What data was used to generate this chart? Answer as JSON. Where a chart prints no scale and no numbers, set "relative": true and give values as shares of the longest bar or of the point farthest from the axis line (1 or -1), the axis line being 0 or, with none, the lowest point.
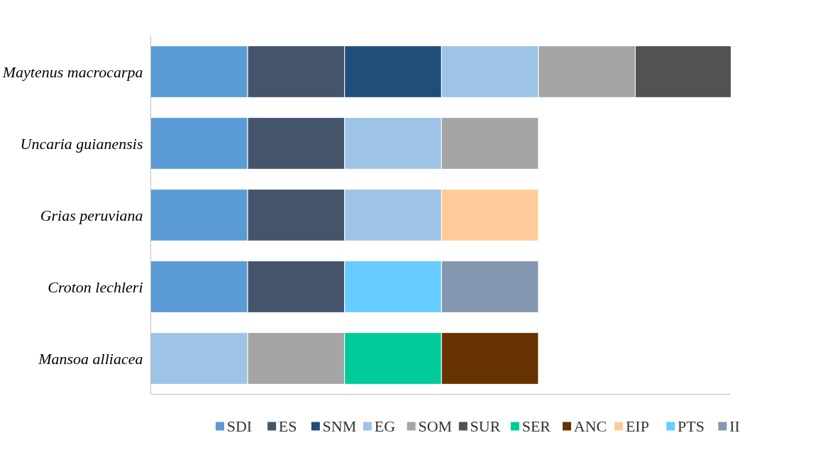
{
  "chart_data": {
    "type": "bar",
    "orientation": "horizontal",
    "stacked": true,
    "relative": true,
    "legend": "bottom",
    "categories": [
      "Maytenus macrocarpa",
      "Uncaria guianensis",
      "Grias peruviana",
      "Croton lechleri",
      "Mansoa alliacea"
    ],
    "series": [
      {
        "name": "SDI",
        "color": "#5b9bd5",
        "values": [
          0.167,
          0.167,
          0.167,
          0.167,
          null
        ]
      },
      {
        "name": "ES",
        "color": "#44546a",
        "values": [
          0.167,
          0.167,
          0.167,
          0.167,
          null
        ]
      },
      {
        "name": "SNM",
        "color": "#1f4e79",
        "values": [
          0.167,
          null,
          null,
          null,
          null
        ]
      },
      {
        "name": "EG",
        "color": "#9dc3e6",
        "values": [
          0.167,
          0.167,
          0.167,
          null,
          0.167
        ]
      },
      {
        "name": "SOM",
        "color": "#a5a5a5",
        "values": [
          0.167,
          0.167,
          null,
          null,
          0.167
        ]
      },
      {
        "name": "SUR",
        "color": "#525252",
        "values": [
          0.165,
          null,
          null,
          null,
          null
        ]
      },
      {
        "name": "SER",
        "color": "#00cc99",
        "values": [
          null,
          null,
          null,
          null,
          0.167
        ]
      },
      {
        "name": "ANC",
        "color": "#663300",
        "values": [
          null,
          null,
          null,
          null,
          0.167
        ]
      },
      {
        "name": "EIP",
        "color": "#ffcc99",
        "values": [
          null,
          null,
          0.167,
          null,
          null
        ]
      },
      {
        "name": "PTS",
        "color": "#66ccff",
        "values": [
          null,
          null,
          null,
          0.167,
          null
        ]
      },
      {
        "name": "II",
        "color": "#8497b0",
        "values": [
          null,
          null,
          null,
          0.167,
          null
        ]
      }
    ]
  }
}
